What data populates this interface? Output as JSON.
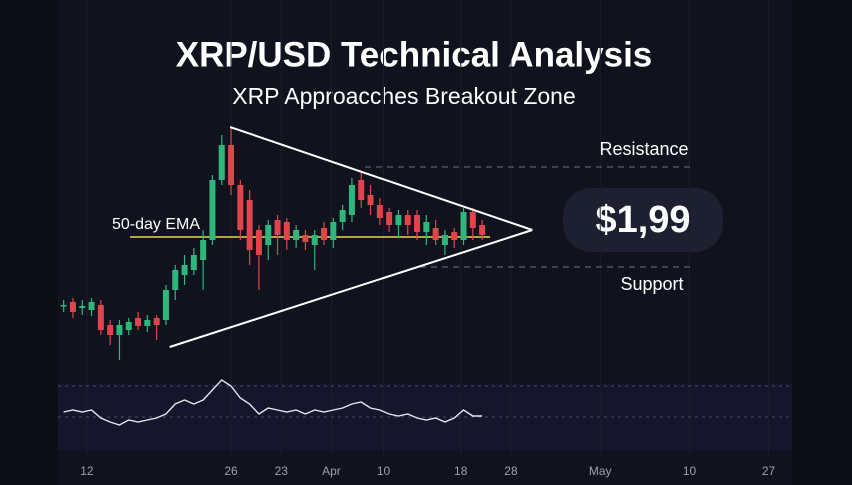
{
  "chart_data": {
    "type": "candlestick",
    "title": "XRP/USD Technical Analysis",
    "subtitle": "XRP Approacches Breakout Zone",
    "x": [
      0,
      1,
      2,
      3,
      4,
      5,
      6,
      7,
      8,
      9,
      10,
      11,
      12,
      13,
      14,
      15,
      16,
      17,
      18,
      19,
      20,
      21,
      22,
      23,
      24,
      25,
      26,
      27,
      28,
      29,
      30,
      31,
      32,
      33,
      34,
      35,
      36,
      37,
      38,
      39,
      40,
      41,
      42,
      43,
      44,
      45
    ],
    "open": [
      1.69,
      1.702,
      1.678,
      1.67,
      1.69,
      1.61,
      1.57,
      1.59,
      1.638,
      1.606,
      1.638,
      1.63,
      1.75,
      1.81,
      1.83,
      1.87,
      1.95,
      2.19,
      2.33,
      2.17,
      2.11,
      1.99,
      1.93,
      2.03,
      2.022,
      1.95,
      1.97,
      1.93,
      1.998,
      1.95,
      2.022,
      2.05,
      2.19,
      2.13,
      2.09,
      2.062,
      2.01,
      2.05,
      2.05,
      1.982,
      1.998,
      1.93,
      1.982,
      1.95,
      2.062,
      2.01
    ],
    "high": [
      1.71,
      1.718,
      1.71,
      1.718,
      1.71,
      1.63,
      1.63,
      1.638,
      1.662,
      1.65,
      1.65,
      1.77,
      1.85,
      1.89,
      1.918,
      1.99,
      2.21,
      2.37,
      2.398,
      2.19,
      2.15,
      2.01,
      2.03,
      2.05,
      2.038,
      2.01,
      1.99,
      1.99,
      2.022,
      2.038,
      2.09,
      2.198,
      2.222,
      2.17,
      2.118,
      2.078,
      2.07,
      2.07,
      2.07,
      2.05,
      2.03,
      1.99,
      1.998,
      2.078,
      2.078,
      2.03
    ],
    "low": [
      1.662,
      1.638,
      1.65,
      1.646,
      1.57,
      1.53,
      1.47,
      1.57,
      1.59,
      1.582,
      1.55,
      1.61,
      1.71,
      1.77,
      1.81,
      1.75,
      1.93,
      2.17,
      2.13,
      1.95,
      1.85,
      1.75,
      1.87,
      1.89,
      1.91,
      1.918,
      1.91,
      1.83,
      1.93,
      1.918,
      1.99,
      2.022,
      2.078,
      2.05,
      2.01,
      1.982,
      1.958,
      1.97,
      1.95,
      1.93,
      1.93,
      1.89,
      1.918,
      1.93,
      1.95,
      1.95
    ],
    "close": [
      1.69,
      1.662,
      1.686,
      1.702,
      1.59,
      1.57,
      1.61,
      1.622,
      1.606,
      1.63,
      1.61,
      1.75,
      1.83,
      1.85,
      1.89,
      1.95,
      2.19,
      2.33,
      2.17,
      1.99,
      1.91,
      1.89,
      2.01,
      1.97,
      1.95,
      1.99,
      1.942,
      1.97,
      1.95,
      2.022,
      2.07,
      2.17,
      2.11,
      2.09,
      2.038,
      2.01,
      2.05,
      2.01,
      1.982,
      2.022,
      1.95,
      1.97,
      1.95,
      2.062,
      1.998,
      1.97
    ],
    "xlim": [
      -0.5,
      78
    ],
    "xticks": [
      {
        "value": 2.5,
        "label": "12"
      },
      {
        "value": 18,
        "label": "26"
      },
      {
        "value": 23.4,
        "label": "23"
      },
      {
        "value": 28.8,
        "label": "Apr"
      },
      {
        "value": 34.4,
        "label": "10"
      },
      {
        "value": 42.7,
        "label": "18"
      },
      {
        "value": 48.1,
        "label": "28"
      },
      {
        "value": 57.7,
        "label": "May"
      },
      {
        "value": 67.3,
        "label": "10"
      },
      {
        "value": 75.8,
        "label": "27"
      }
    ],
    "ylim": [
      1.43,
      2.47
    ],
    "up_color": "#2fb67c",
    "down_color": "#e0454c",
    "ema": {
      "label": "50-day EMA",
      "value": 1.962,
      "color": "#e8d44d"
    },
    "resistance": {
      "label": "Resistance",
      "value": 2.242
    },
    "support": {
      "label": "Support",
      "value": 1.842
    },
    "price_label": "$1,99",
    "trendlines": [
      {
        "x": [
          17.9,
          50.4
        ],
        "y": [
          2.402,
          1.99
        ]
      },
      {
        "x": [
          11.4,
          50.4
        ],
        "y": [
          1.522,
          1.99
        ]
      }
    ],
    "indicator": {
      "values": [
        36,
        40,
        36,
        40,
        24,
        16,
        10,
        20,
        16,
        20,
        24,
        32,
        52,
        60,
        52,
        60,
        80,
        100,
        88,
        64,
        52,
        32,
        44,
        40,
        36,
        40,
        32,
        40,
        36,
        40,
        44,
        52,
        56,
        44,
        40,
        32,
        28,
        32,
        24,
        20,
        24,
        16,
        24,
        40,
        28,
        28
      ],
      "ylim": [
        0,
        100
      ],
      "levels": [
        88,
        26
      ]
    }
  }
}
